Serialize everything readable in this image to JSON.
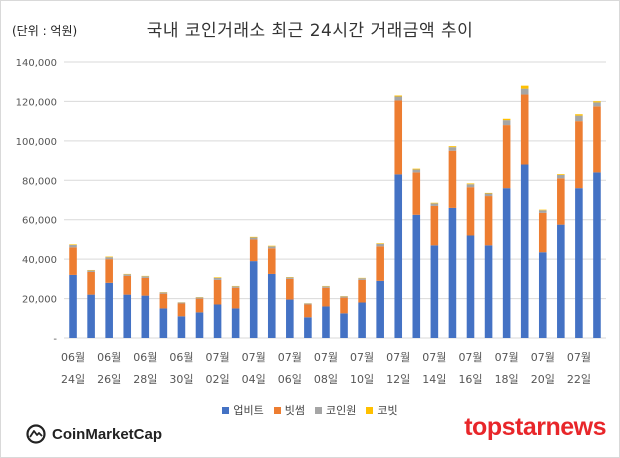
{
  "unit_label": "(단위 : 억원)",
  "chart_data": {
    "type": "bar",
    "stacked": true,
    "title": "국내 코인거래소 최근 24시간 거래금액 추이",
    "ylim": [
      0,
      140000
    ],
    "yticks": [
      0,
      20000,
      40000,
      60000,
      80000,
      100000,
      120000,
      140000
    ],
    "ytick_labels": [
      "-",
      "20,000",
      "40,000",
      "60,000",
      "80,000",
      "100,000",
      "120,000",
      "140,000"
    ],
    "grid": true,
    "legend_position": "bottom",
    "x_tick_labels": [
      {
        "index": 0,
        "month": "06월",
        "day": "24일"
      },
      {
        "index": 2,
        "month": "06월",
        "day": "26일"
      },
      {
        "index": 4,
        "month": "06월",
        "day": "28일"
      },
      {
        "index": 6,
        "month": "06월",
        "day": "30일"
      },
      {
        "index": 8,
        "month": "07월",
        "day": "02일"
      },
      {
        "index": 10,
        "month": "07월",
        "day": "04일"
      },
      {
        "index": 12,
        "month": "07월",
        "day": "06일"
      },
      {
        "index": 14,
        "month": "07월",
        "day": "08일"
      },
      {
        "index": 16,
        "month": "07월",
        "day": "10일"
      },
      {
        "index": 18,
        "month": "07월",
        "day": "12일"
      },
      {
        "index": 20,
        "month": "07월",
        "day": "14일"
      },
      {
        "index": 22,
        "month": "07월",
        "day": "16일"
      },
      {
        "index": 24,
        "month": "07월",
        "day": "18일"
      },
      {
        "index": 26,
        "month": "07월",
        "day": "20일"
      },
      {
        "index": 28,
        "month": "07월",
        "day": "22일"
      }
    ],
    "bar_count": 30,
    "series": [
      {
        "name": "업비트",
        "color": "#4472c4",
        "values": [
          32000,
          22000,
          28000,
          22000,
          21500,
          15000,
          11000,
          13000,
          17000,
          15000,
          39000,
          32500,
          19500,
          10500,
          16000,
          12500,
          18000,
          29000,
          83000,
          62500,
          47000,
          66000,
          52000,
          47000,
          76000,
          88000,
          43500,
          57500,
          76000,
          84000
        ]
      },
      {
        "name": "빗썸",
        "color": "#ed7d31",
        "values": [
          14000,
          11500,
          12000,
          9500,
          9000,
          7500,
          6500,
          7000,
          12500,
          10500,
          11000,
          13000,
          10500,
          6500,
          9500,
          8000,
          11500,
          17500,
          37500,
          21500,
          20000,
          29000,
          24500,
          25000,
          32000,
          35500,
          20000,
          23500,
          34000,
          33500
        ]
      },
      {
        "name": "코인원",
        "color": "#a5a5a5",
        "values": [
          1200,
          800,
          1000,
          800,
          800,
          600,
          500,
          600,
          1000,
          700,
          1000,
          1000,
          700,
          500,
          700,
          600,
          800,
          1300,
          2000,
          1500,
          1300,
          1800,
          1500,
          1300,
          2500,
          3000,
          1300,
          1700,
          2800,
          2000
        ]
      },
      {
        "name": "코빗",
        "color": "#ffc000",
        "values": [
          300,
          200,
          300,
          200,
          200,
          150,
          100,
          150,
          300,
          200,
          300,
          300,
          200,
          100,
          200,
          150,
          200,
          300,
          500,
          400,
          300,
          500,
          400,
          300,
          700,
          1500,
          300,
          400,
          700,
          600
        ]
      }
    ]
  },
  "footer": {
    "left_logo_text": "CoinMarketCap",
    "right_logo_text": "topstarnews"
  }
}
